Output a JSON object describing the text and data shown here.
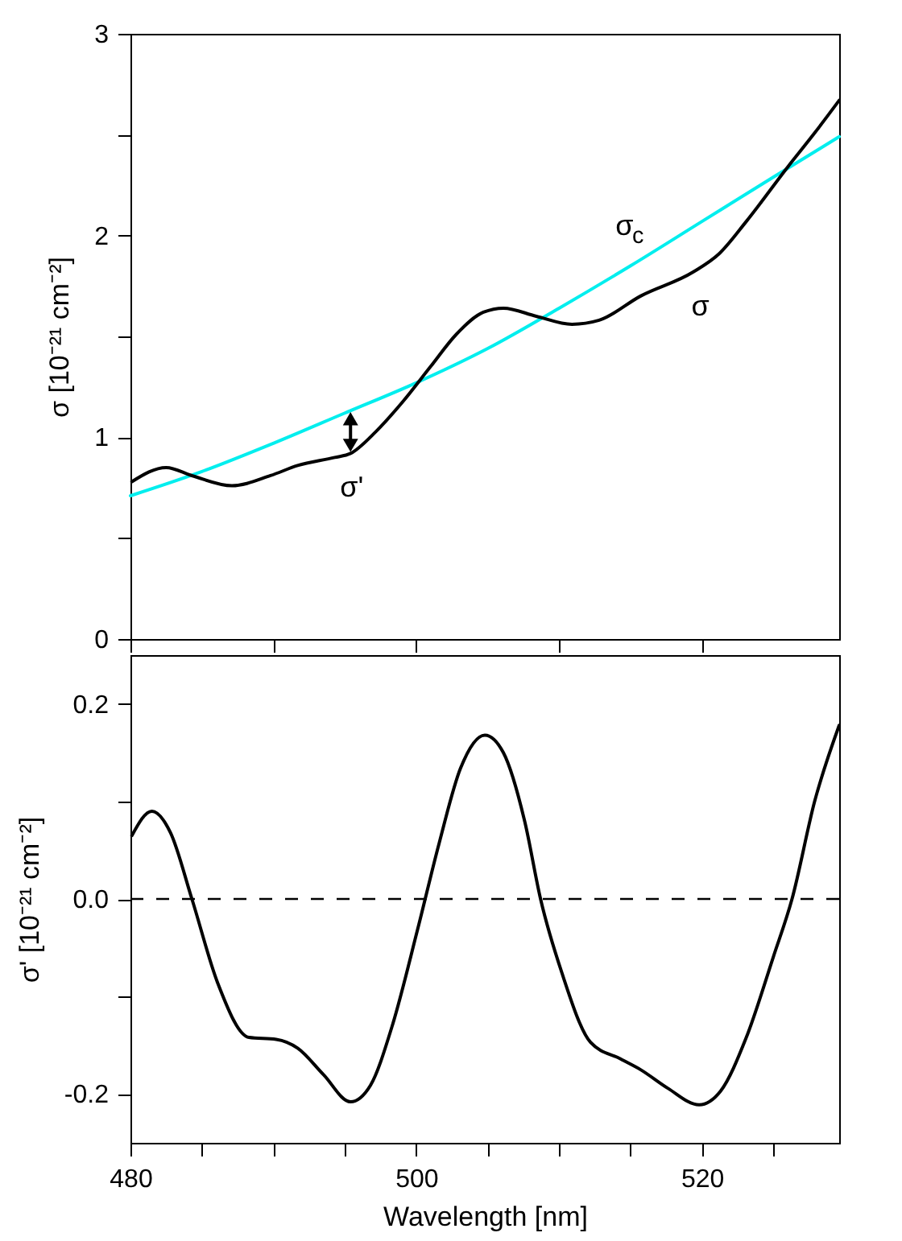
{
  "chart_data": [
    {
      "type": "line",
      "ylabel": "σ [10⁻²¹ cm⁻²]",
      "tick_labels": "y",
      "xlim": [
        480,
        529.6
      ],
      "xticks": [
        480,
        {
          "value": 490,
          "label": null
        },
        {
          "value": 500,
          "label": null
        },
        {
          "value": 510,
          "label": null
        },
        {
          "value": 520,
          "label": null
        }
      ],
      "ylim": [
        0,
        3
      ],
      "yticks": [
        0,
        {
          "value": 0.5,
          "label": null
        },
        1,
        {
          "value": 1.5,
          "label": null
        },
        2,
        {
          "value": 2.5,
          "label": null
        },
        3
      ],
      "series": [
        {
          "color": "#00eeee",
          "x": [
            480,
            485,
            490,
            495,
            500,
            505,
            510,
            515,
            520,
            525,
            529.6
          ],
          "values": [
            0.71,
            0.83,
            0.97,
            1.12,
            1.27,
            1.44,
            1.64,
            1.85,
            2.07,
            2.29,
            2.49
          ]
        },
        {
          "color": "#000000",
          "x": [
            480.1,
            482.5,
            484.3,
            487.1,
            489.8,
            491.7,
            494.3,
            495.4,
            497.2,
            499.1,
            501,
            502.8,
            504.7,
            506.1,
            508.4,
            510.9,
            512.8,
            515.7,
            519.4,
            521.2,
            523.1,
            526,
            527.9,
            529.6
          ],
          "values": [
            0.78,
            0.85,
            0.81,
            0.76,
            0.81,
            0.86,
            0.9,
            0.92,
            1.03,
            1.18,
            1.35,
            1.51,
            1.62,
            1.64,
            1.6,
            1.56,
            1.58,
            1.7,
            1.82,
            1.91,
            2.07,
            2.34,
            2.51,
            2.67
          ]
        }
      ],
      "annotations": [
        {
          "text": "σ$_{c}$",
          "x": 515,
          "y": 1.85
        },
        {
          "text": "σ",
          "x": 519.4,
          "y": 1.82
        },
        {
          "text": "σ'",
          "x": 495.4,
          "y": 0.92
        }
      ]
    },
    {
      "type": "line",
      "xlabel": "Wavelength [nm]",
      "ylabel": "σ' [10⁻²¹ cm⁻²]",
      "xlim": [
        480,
        529.6
      ],
      "xticks": [
        480,
        {
          "value": 485,
          "label": null
        },
        {
          "value": 490,
          "label": null
        },
        {
          "value": 495,
          "label": null
        },
        500,
        {
          "value": 505,
          "label": null
        },
        {
          "value": 510,
          "label": null
        },
        {
          "value": 515,
          "label": null
        },
        520,
        {
          "value": 525,
          "label": null
        }
      ],
      "ylim": [
        -0.25,
        0.25
      ],
      "yticks": [
        -0.2,
        {
          "value": -0.1,
          "label": null
        },
        {
          "value": 0,
          "label": "0.0"
        },
        {
          "value": 0.1,
          "label": null
        },
        0.2
      ],
      "ref_lines": [
        {
          "axis": "y",
          "value": 0,
          "color": "#000000",
          "line_style": "dashed"
        }
      ],
      "series": [
        {
          "color": "#000000",
          "x": [
            480.1,
            481.5,
            482.8,
            484.3,
            486.1,
            488.3,
            490.2,
            491.7,
            493.5,
            495.4,
            496.8,
            498.3,
            500.1,
            501.6,
            503.1,
            504.8,
            506.1,
            507.6,
            508.7,
            510.2,
            512.2,
            514.3,
            515.7,
            517.6,
            519.8,
            521.3,
            523.1,
            525,
            526.3,
            527.9,
            529.6
          ],
          "values": [
            0.065,
            0.09,
            0.068,
            0,
            -0.086,
            -0.142,
            -0.144,
            -0.153,
            -0.18,
            -0.208,
            -0.191,
            -0.131,
            -0.031,
            0.057,
            0.134,
            0.168,
            0.15,
            0.079,
            0,
            -0.076,
            -0.147,
            -0.164,
            -0.175,
            -0.194,
            -0.211,
            -0.197,
            -0.142,
            -0.059,
            0,
            0.101,
            0.178
          ]
        }
      ]
    }
  ]
}
